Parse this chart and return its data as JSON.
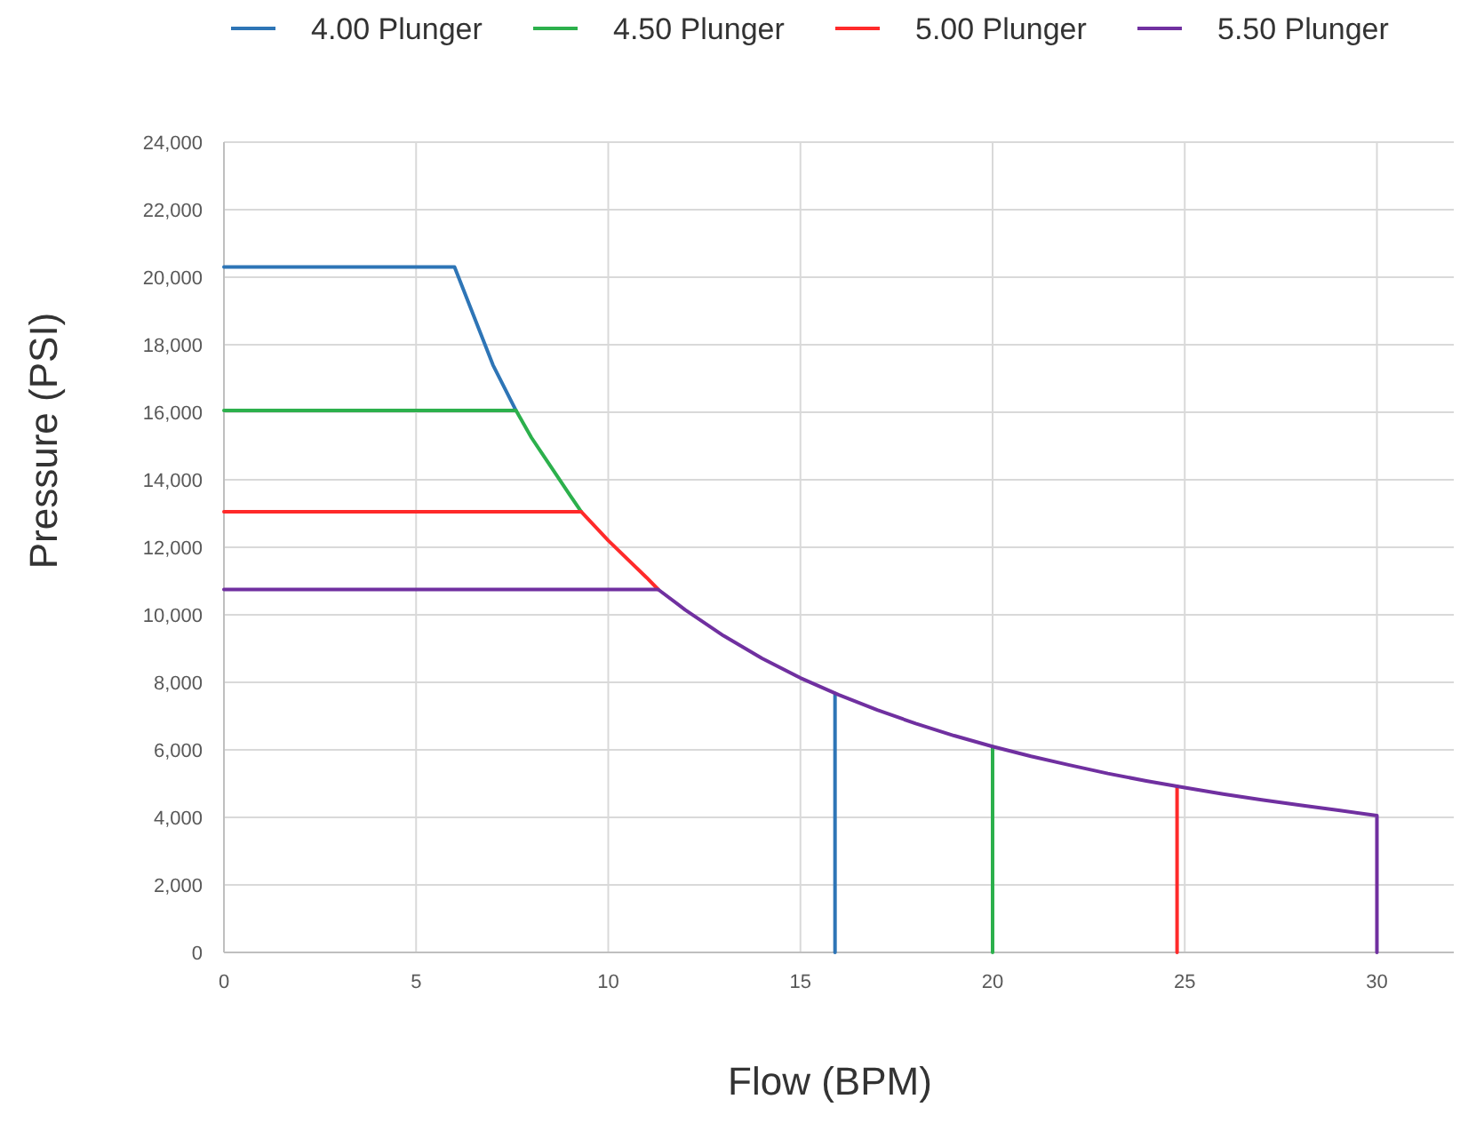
{
  "chart_data": {
    "type": "line",
    "xlabel": "Flow (BPM)",
    "ylabel": "Pressure (PSI)",
    "xlim": [
      0,
      32
    ],
    "xticks": [
      0,
      5,
      10,
      15,
      20,
      25,
      30
    ],
    "ylim": [
      0,
      24000
    ],
    "yticks": [
      {
        "value": 0,
        "label": "0"
      },
      {
        "value": 2000,
        "label": "2,000"
      },
      {
        "value": 4000,
        "label": "4,000"
      },
      {
        "value": 6000,
        "label": "6,000"
      },
      {
        "value": 8000,
        "label": "8,000"
      },
      {
        "value": 10000,
        "label": "10,000"
      },
      {
        "value": 12000,
        "label": "12,000"
      },
      {
        "value": 14000,
        "label": "14,000"
      },
      {
        "value": 16000,
        "label": "16,000"
      },
      {
        "value": 18000,
        "label": "18,000"
      },
      {
        "value": 20000,
        "label": "20,000"
      },
      {
        "value": 22000,
        "label": "22,000"
      },
      {
        "value": 24000,
        "label": "24,000"
      }
    ],
    "grid": true,
    "legend": "top",
    "line_style": "solid",
    "marker": "none",
    "series": [
      {
        "name": "4.00 Plunger",
        "color": "#2e75b6",
        "x": [
          0,
          6.0,
          7,
          7.6,
          8,
          9,
          10,
          11,
          12,
          13,
          14,
          15,
          15.9,
          15.9
        ],
        "values": [
          20300,
          20300,
          17400,
          16050,
          null,
          null,
          null,
          null,
          null,
          null,
          null,
          null,
          7670,
          0
        ]
      },
      {
        "name": "4.50 Plunger",
        "color": "#2cb04c",
        "x": [
          0,
          7.6,
          8,
          9,
          9.3,
          10,
          11,
          12,
          13,
          14,
          15,
          16,
          17,
          18,
          19,
          20,
          20
        ],
        "values": [
          16050,
          16050,
          15250,
          13550,
          13050,
          null,
          null,
          null,
          null,
          null,
          null,
          null,
          null,
          null,
          null,
          6100,
          0
        ]
      },
      {
        "name": "5.00 Plunger",
        "color": "#ff2a2a",
        "x": [
          0,
          9.3,
          10,
          11,
          11.3,
          12,
          13,
          14,
          15,
          16,
          17,
          18,
          19,
          20,
          21,
          22,
          23,
          24,
          24.8,
          24.8
        ],
        "values": [
          13050,
          13050,
          12200,
          11100,
          10750,
          null,
          null,
          null,
          null,
          null,
          null,
          null,
          null,
          null,
          null,
          null,
          null,
          null,
          4920,
          0
        ]
      },
      {
        "name": "5.50 Plunger",
        "color": "#7030a0",
        "x": [
          0,
          11.3,
          12,
          13,
          14,
          15,
          16,
          17,
          18,
          19,
          20,
          21,
          22,
          23,
          24,
          25,
          26,
          27,
          28,
          29,
          30,
          30
        ],
        "values": [
          10750,
          10750,
          10150,
          9380,
          8710,
          8130,
          7630,
          7180,
          6780,
          6420,
          6100,
          5810,
          5550,
          5300,
          5080,
          4880,
          4690,
          4520,
          4360,
          4210,
          4050,
          0
        ]
      }
    ]
  }
}
